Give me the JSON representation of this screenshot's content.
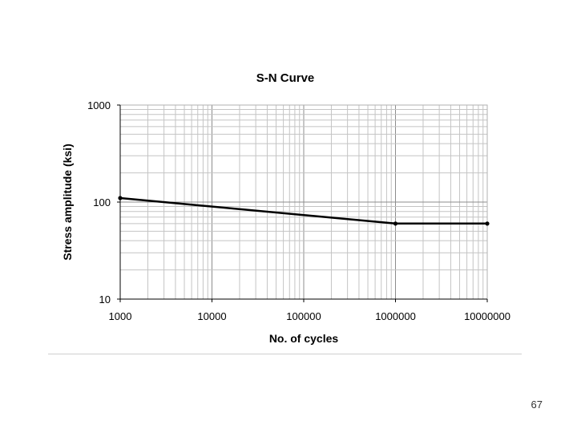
{
  "chart_data": {
    "type": "line",
    "title": "S-N Curve",
    "xlabel": "No. of cycles",
    "ylabel": "Stress amplitude (ksi)",
    "xscale": "log",
    "yscale": "log",
    "xlim": [
      1000,
      10000000
    ],
    "ylim": [
      10,
      1000
    ],
    "x_ticks": [
      1000,
      10000,
      100000,
      1000000,
      10000000
    ],
    "x_tick_labels": [
      "1000",
      "10000",
      "100000",
      "1000000",
      "10000000"
    ],
    "y_ticks": [
      10,
      100,
      1000
    ],
    "y_tick_labels": [
      "10",
      "100",
      "1000"
    ],
    "grid": true,
    "legend": "none",
    "series": [
      {
        "x": [
          1000,
          1000000,
          10000000
        ],
        "y": [
          110,
          60,
          60
        ],
        "color": "#000000"
      }
    ]
  },
  "slide": {
    "page_number": "67"
  }
}
